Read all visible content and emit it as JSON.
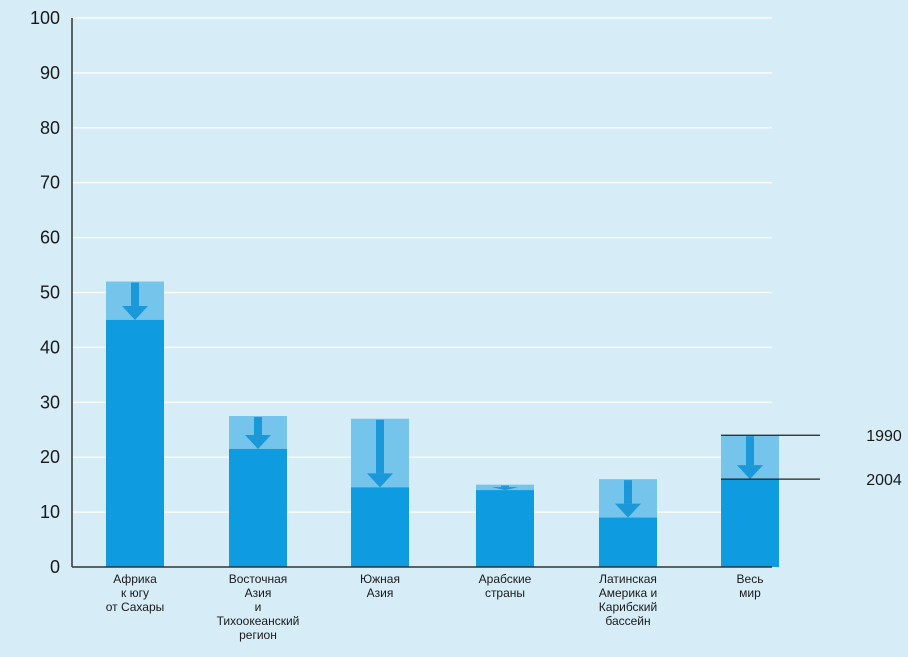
{
  "chart_data": {
    "type": "bar",
    "title": "",
    "xlabel": "",
    "ylabel": "",
    "ylim": [
      0,
      100
    ],
    "yticks": [
      "0",
      "10",
      "20",
      "30",
      "40",
      "50",
      "60",
      "70",
      "80",
      "90",
      "100"
    ],
    "grid": true,
    "categories": [
      [
        "Африка",
        "к югу",
        "от Сахары"
      ],
      [
        "Восточная",
        "Азия",
        "и",
        "Тихоокеанский",
        "регион"
      ],
      [
        "Южная",
        "Азия"
      ],
      [
        "Арабские",
        "страны"
      ],
      [
        "Латинская",
        "Америка и",
        "Карибский",
        "бассейн"
      ],
      [
        "Весь",
        "мир"
      ]
    ],
    "series": [
      {
        "name": "1990",
        "values": [
          52,
          27.5,
          27,
          15,
          16,
          24
        ]
      },
      {
        "name": "2004",
        "values": [
          45,
          21.5,
          14.5,
          14,
          9,
          16
        ]
      }
    ],
    "legend_placement": "right",
    "colors": {
      "background": "#d6ecf7",
      "bar_1990": "#74c4ec",
      "bar_2004": "#0e9be0",
      "arrow": "#1a98d9",
      "grid": "#ffffff",
      "axis": "#333333",
      "text": "#1a1a1a"
    }
  }
}
